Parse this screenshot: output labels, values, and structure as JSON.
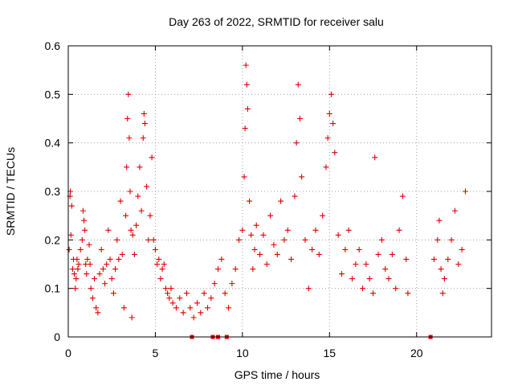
{
  "chart_data": {
    "type": "scatter",
    "title": "Day 263 of 2022, SRMTID for receiver salu",
    "xlabel": "GPS time / hours",
    "ylabel": "SRMTID / TECUs",
    "xlim": [
      0,
      24.3
    ],
    "ylim": [
      0,
      0.6
    ],
    "xticks": [
      0,
      5,
      10,
      15,
      20
    ],
    "yticks": [
      0,
      0.1,
      0.2,
      0.3,
      0.4,
      0.5,
      0.6
    ],
    "xtick_labels": [
      "0",
      "5",
      "10",
      "15",
      "20"
    ],
    "ytick_labels": [
      "0",
      "0.1",
      "0.2",
      "0.3",
      "0.4",
      "0.5",
      "0.6"
    ],
    "grid": true,
    "marker": "+",
    "color": "#e00000",
    "series": [
      {
        "name": "SRMTID",
        "points": [
          [
            0.05,
            0.18
          ],
          [
            0.1,
            0.29
          ],
          [
            0.12,
            0.3
          ],
          [
            0.15,
            0.21
          ],
          [
            0.2,
            0.27
          ],
          [
            0.25,
            0.14
          ],
          [
            0.3,
            0.16
          ],
          [
            0.35,
            0.13
          ],
          [
            0.4,
            0.1
          ],
          [
            0.45,
            0.12
          ],
          [
            0.5,
            0.16
          ],
          [
            0.55,
            0.14
          ],
          [
            0.6,
            0.15
          ],
          [
            0.7,
            0.18
          ],
          [
            0.8,
            0.2
          ],
          [
            0.85,
            0.26
          ],
          [
            0.9,
            0.24
          ],
          [
            0.95,
            0.22
          ],
          [
            1.0,
            0.15
          ],
          [
            1.05,
            0.13
          ],
          [
            1.1,
            0.16
          ],
          [
            1.2,
            0.19
          ],
          [
            1.25,
            0.15
          ],
          [
            1.3,
            0.1
          ],
          [
            1.4,
            0.08
          ],
          [
            1.5,
            0.12
          ],
          [
            1.6,
            0.06
          ],
          [
            1.7,
            0.05
          ],
          [
            1.8,
            0.13
          ],
          [
            1.9,
            0.18
          ],
          [
            2.0,
            0.14
          ],
          [
            2.1,
            0.11
          ],
          [
            2.2,
            0.15
          ],
          [
            2.3,
            0.22
          ],
          [
            2.4,
            0.16
          ],
          [
            2.5,
            0.12
          ],
          [
            2.6,
            0.09
          ],
          [
            2.7,
            0.14
          ],
          [
            2.8,
            0.2
          ],
          [
            2.9,
            0.16
          ],
          [
            3.0,
            0.28
          ],
          [
            3.1,
            0.17
          ],
          [
            3.2,
            0.06
          ],
          [
            3.3,
            0.25
          ],
          [
            3.35,
            0.35
          ],
          [
            3.4,
            0.45
          ],
          [
            3.45,
            0.5
          ],
          [
            3.5,
            0.41
          ],
          [
            3.55,
            0.3
          ],
          [
            3.6,
            0.22
          ],
          [
            3.65,
            0.04
          ],
          [
            3.7,
            0.21
          ],
          [
            3.8,
            0.17
          ],
          [
            3.9,
            0.23
          ],
          [
            4.0,
            0.29
          ],
          [
            4.1,
            0.35
          ],
          [
            4.2,
            0.26
          ],
          [
            4.3,
            0.41
          ],
          [
            4.35,
            0.46
          ],
          [
            4.4,
            0.44
          ],
          [
            4.5,
            0.31
          ],
          [
            4.6,
            0.2
          ],
          [
            4.7,
            0.25
          ],
          [
            4.8,
            0.37
          ],
          [
            4.9,
            0.2
          ],
          [
            5.0,
            0.18
          ],
          [
            5.1,
            0.15
          ],
          [
            5.2,
            0.16
          ],
          [
            5.3,
            0.12
          ],
          [
            5.4,
            0.14
          ],
          [
            5.5,
            0.15
          ],
          [
            5.6,
            0.1
          ],
          [
            5.7,
            0.09
          ],
          [
            5.8,
            0.08
          ],
          [
            5.9,
            0.1
          ],
          [
            6.0,
            0.07
          ],
          [
            6.2,
            0.06
          ],
          [
            6.4,
            0.08
          ],
          [
            6.6,
            0.05
          ],
          [
            6.8,
            0.09
          ],
          [
            7.0,
            0.06
          ],
          [
            7.2,
            0.04
          ],
          [
            7.4,
            0.07
          ],
          [
            7.6,
            0.05
          ],
          [
            7.8,
            0.09
          ],
          [
            8.0,
            0.06
          ],
          [
            8.2,
            0.08
          ],
          [
            8.4,
            0.11
          ],
          [
            8.6,
            0.14
          ],
          [
            8.8,
            0.16
          ],
          [
            9.0,
            0.09
          ],
          [
            9.2,
            0.06
          ],
          [
            9.4,
            0.11
          ],
          [
            9.6,
            0.14
          ],
          [
            9.8,
            0.2
          ],
          [
            10.0,
            0.22
          ],
          [
            10.1,
            0.33
          ],
          [
            10.15,
            0.43
          ],
          [
            10.2,
            0.56
          ],
          [
            10.25,
            0.52
          ],
          [
            10.3,
            0.47
          ],
          [
            10.4,
            0.28
          ],
          [
            10.5,
            0.21
          ],
          [
            10.6,
            0.14
          ],
          [
            10.7,
            0.18
          ],
          [
            10.8,
            0.23
          ],
          [
            11.0,
            0.17
          ],
          [
            11.2,
            0.21
          ],
          [
            11.4,
            0.15
          ],
          [
            11.6,
            0.25
          ],
          [
            11.8,
            0.19
          ],
          [
            12.0,
            0.17
          ],
          [
            12.2,
            0.28
          ],
          [
            12.4,
            0.2
          ],
          [
            12.6,
            0.22
          ],
          [
            12.8,
            0.16
          ],
          [
            13.0,
            0.29
          ],
          [
            13.1,
            0.4
          ],
          [
            13.2,
            0.52
          ],
          [
            13.3,
            0.45
          ],
          [
            13.4,
            0.33
          ],
          [
            13.6,
            0.2
          ],
          [
            13.8,
            0.1
          ],
          [
            14.0,
            0.18
          ],
          [
            14.2,
            0.22
          ],
          [
            14.4,
            0.17
          ],
          [
            14.6,
            0.25
          ],
          [
            14.8,
            0.35
          ],
          [
            14.9,
            0.41
          ],
          [
            15.0,
            0.46
          ],
          [
            15.1,
            0.5
          ],
          [
            15.2,
            0.44
          ],
          [
            15.3,
            0.38
          ],
          [
            15.5,
            0.21
          ],
          [
            15.7,
            0.13
          ],
          [
            15.9,
            0.18
          ],
          [
            16.1,
            0.22
          ],
          [
            16.3,
            0.12
          ],
          [
            16.5,
            0.15
          ],
          [
            16.7,
            0.18
          ],
          [
            16.9,
            0.1
          ],
          [
            17.1,
            0.15
          ],
          [
            17.3,
            0.12
          ],
          [
            17.5,
            0.09
          ],
          [
            17.6,
            0.37
          ],
          [
            17.8,
            0.17
          ],
          [
            18.0,
            0.2
          ],
          [
            18.2,
            0.14
          ],
          [
            18.4,
            0.12
          ],
          [
            18.6,
            0.17
          ],
          [
            18.8,
            0.1
          ],
          [
            19.0,
            0.22
          ],
          [
            19.2,
            0.29
          ],
          [
            19.4,
            0.16
          ],
          [
            19.5,
            0.09
          ],
          [
            21.0,
            0.16
          ],
          [
            21.2,
            0.2
          ],
          [
            21.3,
            0.24
          ],
          [
            21.4,
            0.14
          ],
          [
            21.5,
            0.09
          ],
          [
            21.6,
            0.12
          ],
          [
            21.8,
            0.16
          ],
          [
            22.0,
            0.2
          ],
          [
            22.2,
            0.26
          ],
          [
            22.4,
            0.15
          ],
          [
            22.6,
            0.18
          ],
          [
            22.8,
            0.3
          ]
        ]
      }
    ],
    "baseline_markers": [
      7.1,
      8.3,
      8.6,
      9.1,
      20.8
    ]
  }
}
